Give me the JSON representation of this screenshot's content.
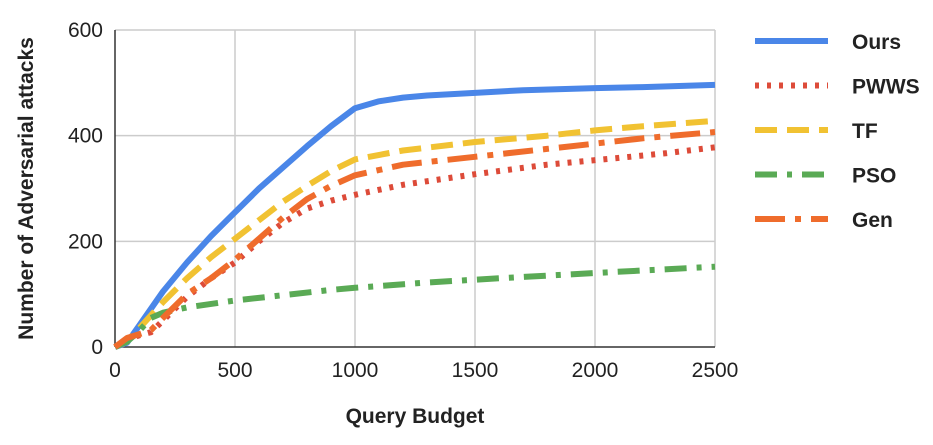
{
  "chart_data": {
    "type": "line",
    "xlabel": "Query Budget",
    "ylabel": "Number of Adversarial attacks",
    "xlim": [
      0,
      2500
    ],
    "ylim": [
      0,
      600
    ],
    "x_ticks": [
      0,
      500,
      1000,
      1500,
      2000,
      2500
    ],
    "y_ticks": [
      0,
      200,
      400,
      600
    ],
    "grid": true,
    "legend_position": "right",
    "series": [
      {
        "name": "Ours",
        "color": "#4a86e8",
        "dash": "solid",
        "points": [
          [
            0,
            0
          ],
          [
            50,
            8
          ],
          [
            100,
            40
          ],
          [
            200,
            105
          ],
          [
            300,
            160
          ],
          [
            400,
            210
          ],
          [
            500,
            255
          ],
          [
            600,
            300
          ],
          [
            700,
            340
          ],
          [
            800,
            380
          ],
          [
            900,
            418
          ],
          [
            1000,
            452
          ],
          [
            1100,
            465
          ],
          [
            1200,
            472
          ],
          [
            1300,
            476
          ],
          [
            1500,
            481
          ],
          [
            1700,
            486
          ],
          [
            2000,
            490
          ],
          [
            2200,
            492
          ],
          [
            2500,
            496
          ]
        ]
      },
      {
        "name": "PWWS",
        "color": "#dd4b39",
        "dash": "dotted",
        "points": [
          [
            0,
            0
          ],
          [
            50,
            14
          ],
          [
            100,
            22
          ],
          [
            150,
            28
          ],
          [
            200,
            50
          ],
          [
            300,
            95
          ],
          [
            400,
            130
          ],
          [
            500,
            160
          ],
          [
            600,
            200
          ],
          [
            700,
            235
          ],
          [
            800,
            262
          ],
          [
            900,
            277
          ],
          [
            1000,
            288
          ],
          [
            1200,
            307
          ],
          [
            1500,
            327
          ],
          [
            1800,
            345
          ],
          [
            2100,
            358
          ],
          [
            2300,
            367
          ],
          [
            2500,
            378
          ]
        ]
      },
      {
        "name": "TF",
        "color": "#f1c232",
        "dash": "dashed",
        "points": [
          [
            0,
            0
          ],
          [
            50,
            10
          ],
          [
            100,
            35
          ],
          [
            200,
            85
          ],
          [
            300,
            130
          ],
          [
            400,
            170
          ],
          [
            500,
            205
          ],
          [
            600,
            240
          ],
          [
            700,
            275
          ],
          [
            800,
            305
          ],
          [
            900,
            333
          ],
          [
            1000,
            355
          ],
          [
            1200,
            372
          ],
          [
            1500,
            388
          ],
          [
            1800,
            400
          ],
          [
            2000,
            410
          ],
          [
            2200,
            418
          ],
          [
            2500,
            428
          ]
        ]
      },
      {
        "name": "PSO",
        "color": "#5aaa55",
        "dash": "dashdot",
        "points": [
          [
            0,
            0
          ],
          [
            50,
            10
          ],
          [
            100,
            30
          ],
          [
            150,
            55
          ],
          [
            200,
            65
          ],
          [
            300,
            75
          ],
          [
            500,
            88
          ],
          [
            700,
            98
          ],
          [
            900,
            108
          ],
          [
            1000,
            112
          ],
          [
            1300,
            122
          ],
          [
            1600,
            130
          ],
          [
            2000,
            140
          ],
          [
            2500,
            152
          ]
        ]
      },
      {
        "name": "Gen",
        "color": "#ef6c2c",
        "dash": "longdashdot",
        "points": [
          [
            0,
            0
          ],
          [
            50,
            17
          ],
          [
            100,
            24
          ],
          [
            150,
            32
          ],
          [
            200,
            55
          ],
          [
            300,
            100
          ],
          [
            400,
            130
          ],
          [
            500,
            165
          ],
          [
            600,
            205
          ],
          [
            700,
            245
          ],
          [
            800,
            280
          ],
          [
            900,
            305
          ],
          [
            1000,
            325
          ],
          [
            1200,
            345
          ],
          [
            1500,
            360
          ],
          [
            1800,
            375
          ],
          [
            2000,
            385
          ],
          [
            2200,
            395
          ],
          [
            2500,
            407
          ]
        ]
      }
    ]
  }
}
